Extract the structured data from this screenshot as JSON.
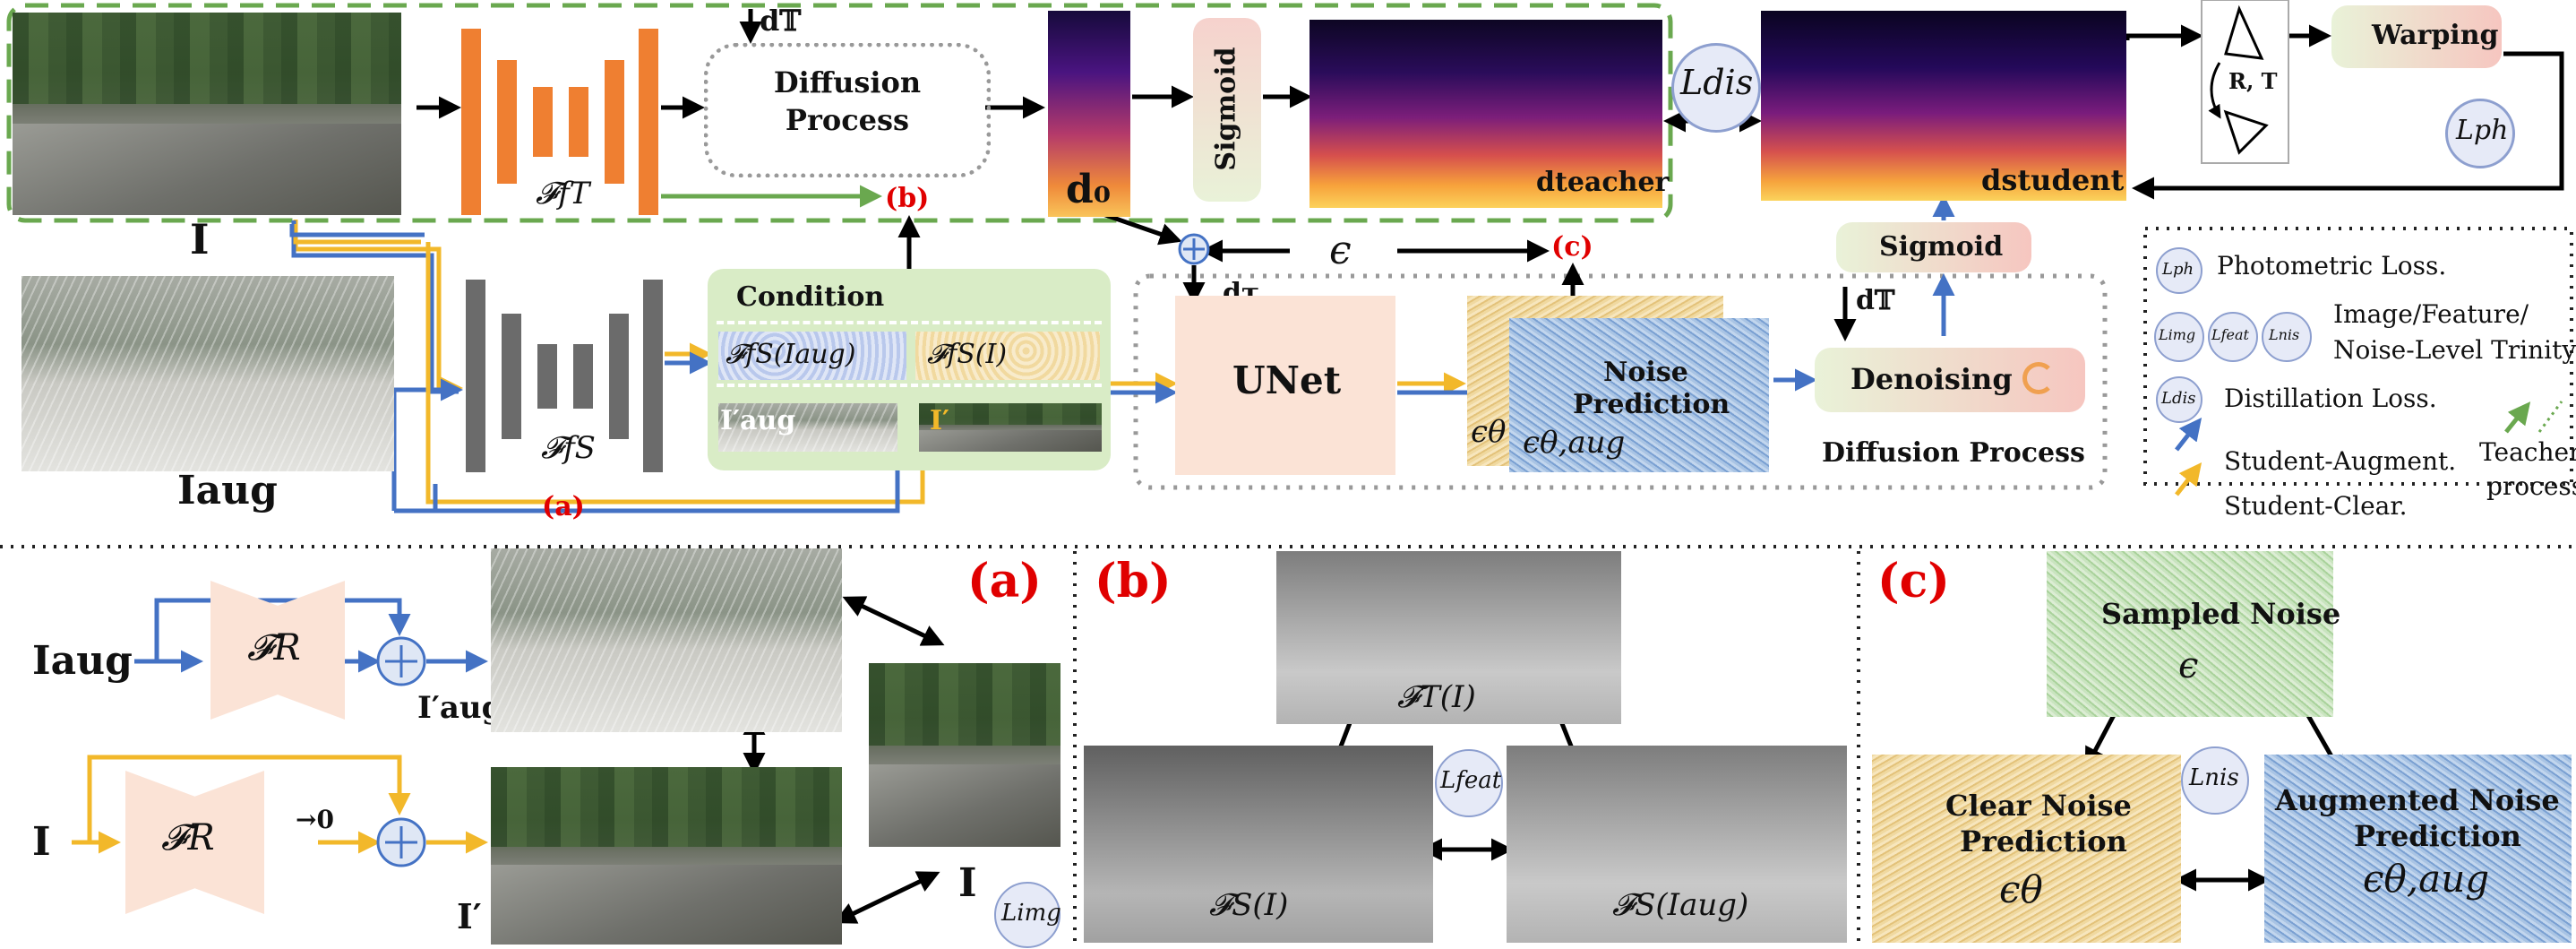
{
  "labels": {
    "d_T_top": "d𝕋",
    "diffusion_process_1": "Diffusion",
    "diffusion_process_2": "Process",
    "d0": "d₀",
    "sigmoid_top": "Sigmoid",
    "d_teacher": "dteacher",
    "L_dis": "Ldis",
    "d_student": "dstudent",
    "RT": "R, T",
    "warping": "Warping",
    "L_ph": "Lph",
    "F_fT": "𝓕fT",
    "marker_b": "(b)",
    "I_main": "I",
    "I_aug_main": "Iaug",
    "F_fS": "𝓕fS",
    "condition": "Condition",
    "cond_fs_aug": "𝓕fS(Iaug)",
    "cond_fs_clear": "𝓕fS(I)",
    "cond_I_aug_prime": "I′aug",
    "cond_I_prime": "I′",
    "marker_a": "(a)",
    "epsilon": "ϵ",
    "marker_c": "(c)",
    "d_tau": "dτ",
    "unet": "UNet",
    "noise_pred_1": "Noise",
    "noise_pred_2": "Prediction",
    "eps_theta": "ϵθ",
    "eps_theta_aug": "ϵθ,aug",
    "sigmoid_mid": "Sigmoid",
    "d_T_mid": "d𝕋",
    "denoising": "Denoising",
    "diffusion_process_box": "Diffusion Process"
  },
  "legend": {
    "items": [
      {
        "badge": "Lph",
        "text": "Photometric Loss."
      },
      {
        "badge": "Limg",
        "text": "Image/Feature/"
      },
      {
        "badge": "",
        "text": "Noise-Level Trinity"
      },
      {
        "badge": "Ldis",
        "text": "Distillation Loss."
      },
      {
        "badge": "",
        "text": "Student-Augment."
      },
      {
        "badge": "",
        "text": "Student-Clear."
      }
    ],
    "badge_feat": "Lfeat",
    "badge_nis": "Lnis",
    "teacher_1": "Teacher",
    "teacher_2": "process."
  },
  "panel_a": {
    "marker": "(a)",
    "I_aug": "Iaug",
    "F_R_top": "𝓕R",
    "I_aug_prime": "I′aug",
    "I": "I",
    "F_R_bottom": "𝓕R",
    "to_zero": "→0",
    "I_prime": "I′",
    "I_right": "I",
    "L_img": "Limg"
  },
  "panel_b": {
    "marker": "(b)",
    "F_T": "𝓕T(I)",
    "F_S": "𝓕S(I)",
    "F_S_aug": "𝓕S(Iaug)",
    "L_feat": "Lfeat"
  },
  "panel_c": {
    "marker": "(c)",
    "sampled_1": "Sampled Noise",
    "sampled_eps": "ϵ",
    "clear_1": "Clear Noise",
    "clear_2": "Prediction",
    "clear_eps": "ϵθ",
    "aug_1": "Augmented Noise",
    "aug_2": "Prediction",
    "aug_eps": "ϵθ,aug",
    "L_nis": "Lnis"
  },
  "colors": {
    "orange": "#ef7f31",
    "gray": "#6b6b6b",
    "blue": "#4472c4",
    "yellow": "#f2b82a",
    "green": "#6aa84f",
    "red": "#e00000",
    "salmon": "#fbe3d6",
    "cond_green": "#d9ecc6",
    "sig_pink": "#f6d2cd"
  }
}
